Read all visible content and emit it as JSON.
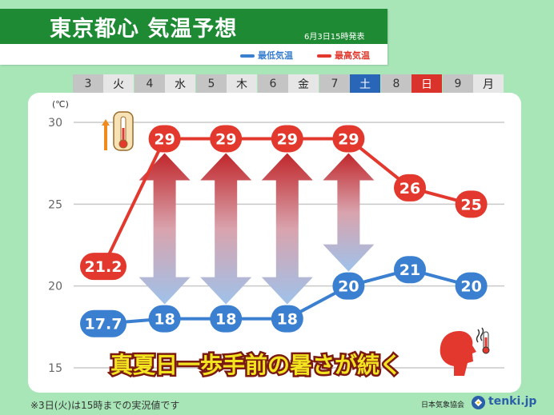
{
  "header": {
    "title": "東京都心 気温予想",
    "issued": "6月3日15時発表"
  },
  "legend": {
    "min_label": "最低気温",
    "max_label": "最高気温",
    "min_color": "#3a7fd0",
    "max_color": "#e2382d"
  },
  "days": [
    {
      "date": "3",
      "dow": "火",
      "dow_bg": "#e6e6e6",
      "dow_fg": "#222222"
    },
    {
      "date": "4",
      "dow": "水",
      "dow_bg": "#e6e6e6",
      "dow_fg": "#222222"
    },
    {
      "date": "5",
      "dow": "木",
      "dow_bg": "#e6e6e6",
      "dow_fg": "#222222"
    },
    {
      "date": "6",
      "dow": "金",
      "dow_bg": "#e6e6e6",
      "dow_fg": "#222222"
    },
    {
      "date": "7",
      "dow": "土",
      "dow_bg": "#2a66b8",
      "dow_fg": "#ffffff"
    },
    {
      "date": "8",
      "dow": "日",
      "dow_bg": "#d9332b",
      "dow_fg": "#ffffff"
    },
    {
      "date": "9",
      "dow": "月",
      "dow_bg": "#e6e6e6",
      "dow_fg": "#222222"
    }
  ],
  "chart_data": {
    "type": "line",
    "unit_label": "(℃)",
    "yticks": [
      "30",
      "25",
      "20",
      "15"
    ],
    "ylim": [
      15,
      30
    ],
    "grid": true,
    "categories": [
      "3 火",
      "4 水",
      "5 木",
      "6 金",
      "7 土",
      "8 日",
      "9 月"
    ],
    "series": [
      {
        "name": "最高気温",
        "color": "#e2382d",
        "values": [
          21.2,
          29,
          29,
          29,
          29,
          26,
          25
        ],
        "labels": [
          "21.2",
          "29",
          "29",
          "29",
          "29",
          "26",
          "25"
        ]
      },
      {
        "name": "最低気温",
        "color": "#3a7fd0",
        "values": [
          17.7,
          18,
          18,
          18,
          20,
          21,
          20
        ],
        "labels": [
          "17.7",
          "18",
          "18",
          "18",
          "20",
          "21",
          "20"
        ]
      }
    ],
    "annotation": "真夏日一歩手前の暑さが続く"
  },
  "footer": {
    "note": "※3日(火)は15時までの実況値です",
    "agency": "日本気象協会",
    "brand": "tenki.jp"
  }
}
